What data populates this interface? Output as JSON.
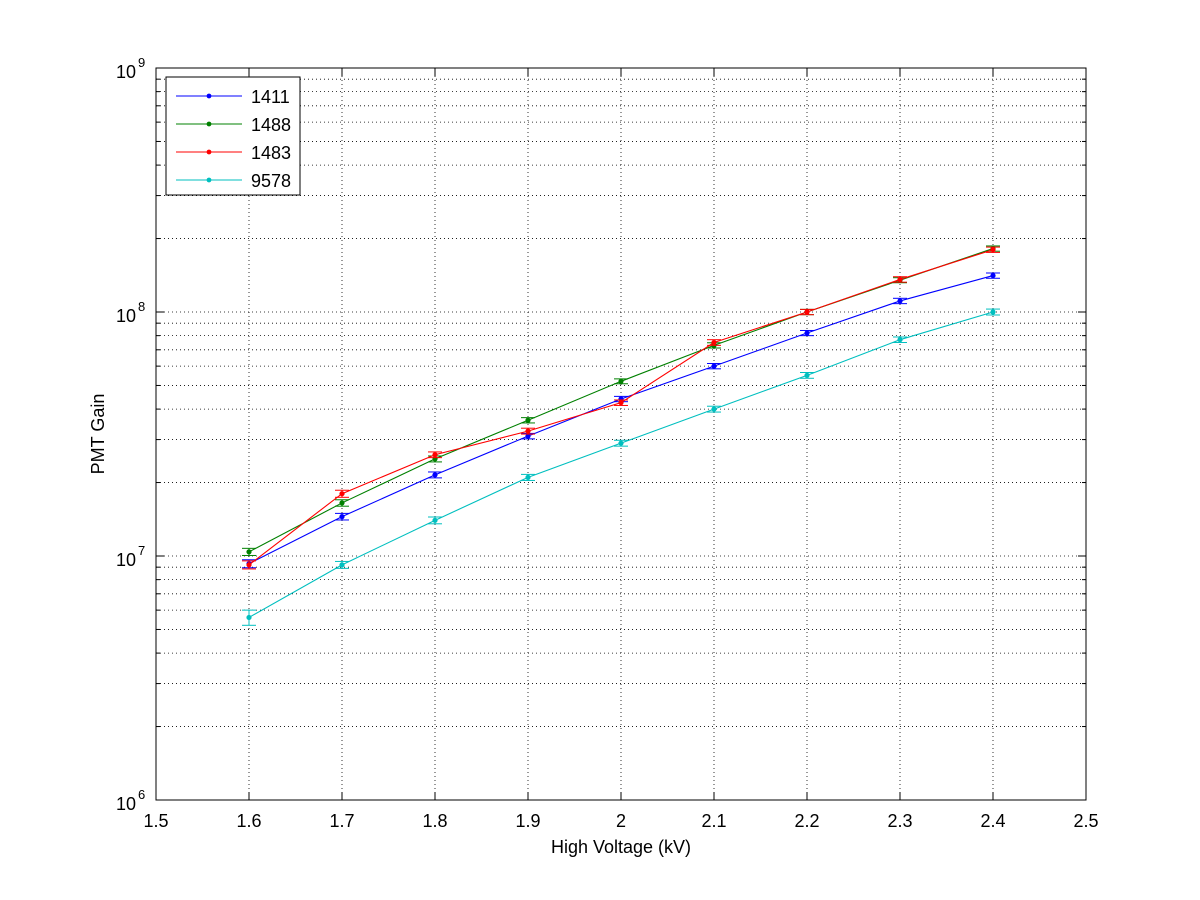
{
  "chart_data": {
    "type": "line",
    "title": "",
    "xlabel": "High Voltage (kV)",
    "ylabel": "PMT Gain",
    "xlim": [
      1.5,
      2.5
    ],
    "ylim": [
      1000000,
      1000000000
    ],
    "yscale": "log",
    "grid": true,
    "legend_position": "top-left",
    "x_ticks": [
      "1.5",
      "1.6",
      "1.7",
      "1.8",
      "1.9",
      "2",
      "2.1",
      "2.2",
      "2.3",
      "2.4",
      "2.5"
    ],
    "y_ticks": [
      {
        "base": "10",
        "exp": "6"
      },
      {
        "base": "10",
        "exp": "7"
      },
      {
        "base": "10",
        "exp": "8"
      },
      {
        "base": "10",
        "exp": "9"
      }
    ],
    "x": [
      1.6,
      1.7,
      1.8,
      1.9,
      2.0,
      2.1,
      2.2,
      2.3,
      2.4
    ],
    "series": [
      {
        "name": "1411",
        "color": "#0000ff",
        "values": [
          9300000,
          14500000,
          21500000,
          31000000,
          44000000,
          60000000,
          82000000,
          111000000,
          141000000
        ],
        "errors": [
          350000,
          450000,
          600000,
          800000,
          1100000,
          1500000,
          2000000,
          2800000,
          3500000
        ]
      },
      {
        "name": "1488",
        "color": "#008000",
        "values": [
          10400000,
          16500000,
          25000000,
          36000000,
          52000000,
          73000000,
          100000000,
          135000000,
          182000000
        ],
        "errors": [
          350000,
          500000,
          700000,
          900000,
          1200000,
          1800000,
          2500000,
          3200000,
          4500000
        ]
      },
      {
        "name": "1483",
        "color": "#ff0000",
        "values": [
          9200000,
          18000000,
          26000000,
          32500000,
          42500000,
          75000000,
          100000000,
          136000000,
          180000000
        ],
        "errors": [
          350000,
          600000,
          700000,
          900000,
          1100000,
          2000000,
          2500000,
          3500000,
          4500000
        ]
      },
      {
        "name": "9578",
        "color": "#00bfbf",
        "values": [
          5600000,
          9200000,
          14000000,
          21000000,
          29000000,
          40000000,
          55000000,
          77000000,
          100000000
        ],
        "errors": [
          400000,
          300000,
          450000,
          600000,
          800000,
          1100000,
          1500000,
          2000000,
          2800000
        ]
      }
    ]
  }
}
